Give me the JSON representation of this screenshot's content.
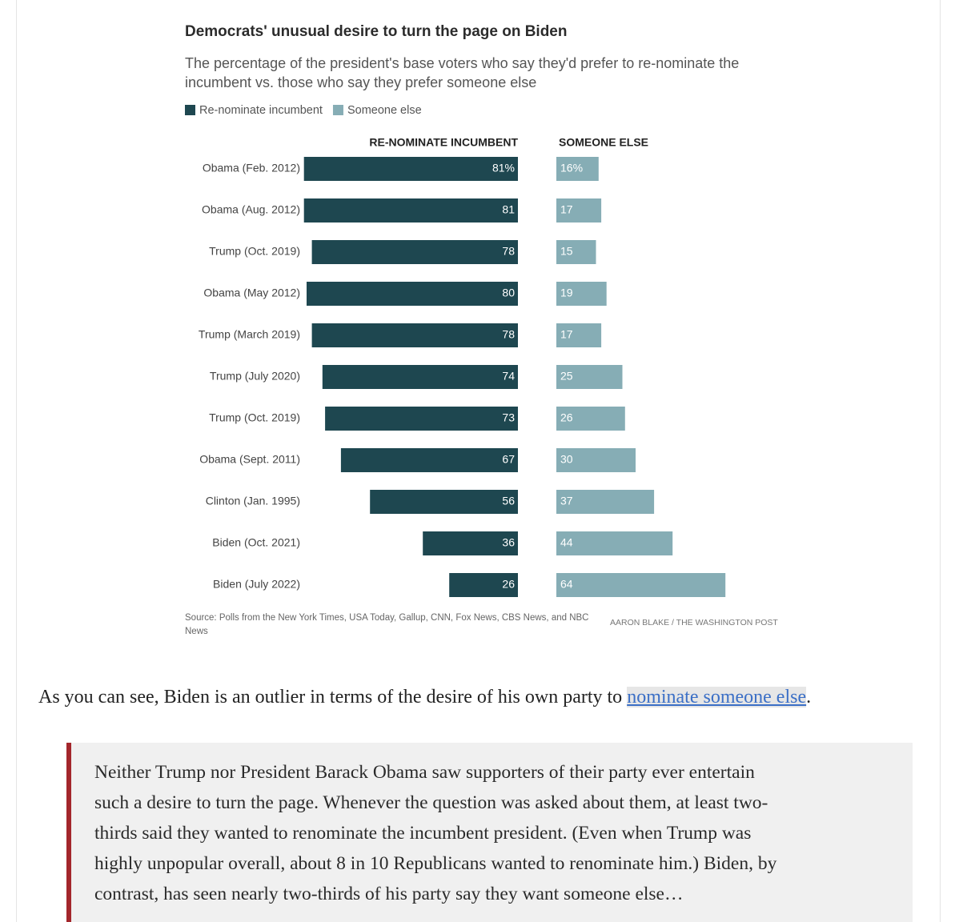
{
  "chart_data": {
    "type": "butterfly-bar",
    "title": "Democrats' unusual desire to turn the page on Biden",
    "subtitle": "The percentage of the president's base voters who say they'd prefer to re-nominate the incumbent vs. those who say they prefer someone else",
    "column_headers": [
      "RE-NOMINATE INCUMBENT",
      "SOMEONE ELSE"
    ],
    "categories": [
      "Obama (Feb. 2012)",
      "Obama (Aug. 2012)",
      "Trump (Oct. 2019)",
      "Obama (May 2012)",
      "Trump (March 2019)",
      "Trump (July 2020)",
      "Trump (Oct. 2019)",
      "Obama (Sept. 2011)",
      "Clinton (Jan. 1995)",
      "Biden (Oct. 2021)",
      "Biden (July 2022)"
    ],
    "series": [
      {
        "name": "Re-nominate incumbent",
        "color": "#1e4750",
        "values": [
          81,
          81,
          78,
          80,
          78,
          74,
          73,
          67,
          56,
          36,
          26
        ],
        "value_labels": [
          "81%",
          "81",
          "78",
          "80",
          "78",
          "74",
          "73",
          "67",
          "56",
          "36",
          "26"
        ]
      },
      {
        "name": "Someone else",
        "color": "#86adb5",
        "values": [
          16,
          17,
          15,
          19,
          17,
          25,
          26,
          30,
          37,
          44,
          64
        ],
        "value_labels": [
          "16%",
          "17",
          "15",
          "19",
          "17",
          "25",
          "26",
          "30",
          "37",
          "44",
          "64"
        ]
      }
    ],
    "xlim": [
      0,
      100
    ],
    "source": "Source: Polls from the New York Times, USA Today, Gallup, CNN, Fox News, CBS News, and NBC News",
    "credit": "AARON BLAKE / THE WASHINGTON POST"
  },
  "article": {
    "paragraph": {
      "before": "As you can see, Biden is an outlier in terms of the desire of his own party to ",
      "link": "nominate someone else",
      "after": "."
    },
    "quote_lines": [
      "Neither Trump nor President Barack Obama saw supporters of their party ever entertain",
      "such a desire to turn the page. Whenever the question was asked about them, at least two-",
      "thirds said they wanted to renominate the incumbent president. (Even when Trump was",
      "highly unpopular overall, about 8 in 10 Republicans wanted to renominate him.) Biden, by",
      "contrast, has seen nearly two-thirds of his party say they want someone else…"
    ]
  }
}
